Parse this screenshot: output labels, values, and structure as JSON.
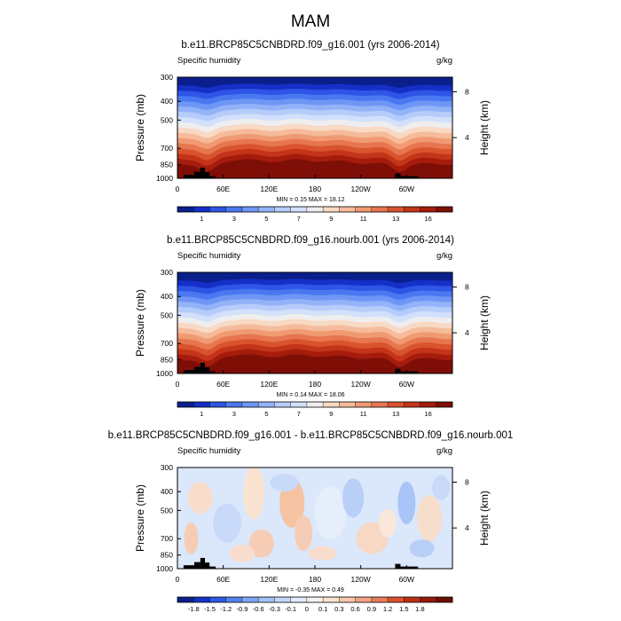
{
  "title": "MAM",
  "colors": {
    "abs_scale": [
      "#0a1f8c",
      "#1530c8",
      "#2e55e6",
      "#4a78f0",
      "#6e96f5",
      "#93b3f8",
      "#b6ccfa",
      "#d3e0fb",
      "#efeeee",
      "#f8d9c4",
      "#f6bb9a",
      "#f09a72",
      "#e67650",
      "#d9532f",
      "#c33418",
      "#a51c0d",
      "#7f0e07"
    ],
    "diff_scale": [
      "#0a1f8c",
      "#1632c6",
      "#2d5ae6",
      "#5484f0",
      "#7ea7f6",
      "#a4c2f8",
      "#c6d8fa",
      "#e2ebfb",
      "#f7f4f0",
      "#fbe3d2",
      "#f8c8ac",
      "#f2a584",
      "#e87d59",
      "#d9532f",
      "#bf3116",
      "#961a0b",
      "#6e0c05"
    ]
  },
  "chart_data": [
    {
      "type": "heatmap",
      "title": "b.e11.BRCP85C5CNBDRD.f09_g16.001 (yrs 2006-2014)",
      "left_label": "Specific humidity",
      "right_label": "g/kg",
      "ylabel": "Pressure (mb)",
      "y2label": "Height (km)",
      "x_ticks": [
        "0",
        "60E",
        "120E",
        "180",
        "120W",
        "60W"
      ],
      "y_ticks": [
        "300",
        "400",
        "500",
        "700",
        "850",
        "1000"
      ],
      "y2_ticks": [
        "8",
        "4"
      ],
      "stats": "MIN =   0.15  MAX =  18.12",
      "min": 0.15,
      "max": 18.12,
      "colorbar_labels": [
        "1",
        "3",
        "5",
        "7",
        "9",
        "11",
        "13",
        "16"
      ],
      "xlim": [
        0,
        360
      ],
      "ylim": [
        1000,
        300
      ]
    },
    {
      "type": "heatmap",
      "title": "b.e11.BRCP85C5CNBDRD.f09_g16.nourb.001 (yrs 2006-2014)",
      "left_label": "Specific humidity",
      "right_label": "g/kg",
      "ylabel": "Pressure (mb)",
      "y2label": "Height (km)",
      "x_ticks": [
        "0",
        "60E",
        "120E",
        "180",
        "120W",
        "60W"
      ],
      "y_ticks": [
        "300",
        "400",
        "500",
        "700",
        "850",
        "1000"
      ],
      "y2_ticks": [
        "8",
        "4"
      ],
      "stats": "MIN =   0.14  MAX =  18.06",
      "min": 0.14,
      "max": 18.06,
      "colorbar_labels": [
        "1",
        "3",
        "5",
        "7",
        "9",
        "11",
        "13",
        "16"
      ],
      "xlim": [
        0,
        360
      ],
      "ylim": [
        1000,
        300
      ]
    },
    {
      "type": "heatmap",
      "title": "b.e11.BRCP85C5CNBDRD.f09_g16.001 - b.e11.BRCP85C5CNBDRD.f09_g16.nourb.001",
      "left_label": "Specific humidity",
      "right_label": "g/kg",
      "ylabel": "Pressure (mb)",
      "y2label": "Height (km)",
      "x_ticks": [
        "0",
        "60E",
        "120E",
        "180",
        "120W",
        "60W"
      ],
      "y_ticks": [
        "300",
        "400",
        "500",
        "700",
        "850",
        "1000"
      ],
      "y2_ticks": [
        "8",
        "4"
      ],
      "stats": "MIN =  -0.35  MAX =   0.49",
      "min": -0.35,
      "max": 0.49,
      "colorbar_labels": [
        "-1.8",
        "-1.5",
        "-1.2",
        "-0.9",
        "-0.6",
        "-0.3",
        "-0.1",
        "0",
        "0.1",
        "0.3",
        "0.6",
        "0.9",
        "1.2",
        "1.5",
        "1.8"
      ],
      "xlim": [
        0,
        360
      ],
      "ylim": [
        1000,
        300
      ]
    }
  ]
}
